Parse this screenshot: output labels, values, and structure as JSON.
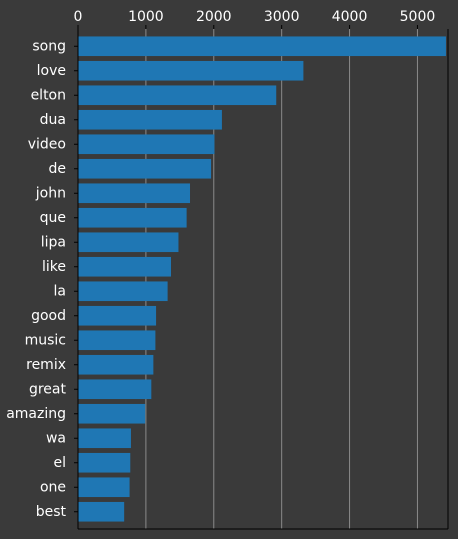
{
  "chart_data": {
    "type": "bar",
    "orientation": "horizontal",
    "categories": [
      "song",
      "love",
      "elton",
      "dua",
      "video",
      "de",
      "john",
      "que",
      "lipa",
      "like",
      "la",
      "good",
      "music",
      "remix",
      "great",
      "amazing",
      "wa",
      "el",
      "one",
      "best"
    ],
    "values": [
      5420,
      3320,
      2920,
      2120,
      2010,
      1960,
      1650,
      1600,
      1480,
      1370,
      1320,
      1150,
      1140,
      1110,
      1080,
      990,
      780,
      770,
      760,
      680
    ],
    "xlim": [
      0,
      5450
    ],
    "xticks": [
      0,
      1000,
      2000,
      3000,
      4000,
      5000
    ],
    "xtick_position": "top",
    "grid": "vertical",
    "legend": "none",
    "title": "",
    "xlabel": "",
    "ylabel": "",
    "colors": {
      "background": "#3a3a3a",
      "bar": "#1f77b4",
      "grid": "#8a8a8a",
      "text": "#ffffff",
      "axis": "#000000"
    }
  }
}
